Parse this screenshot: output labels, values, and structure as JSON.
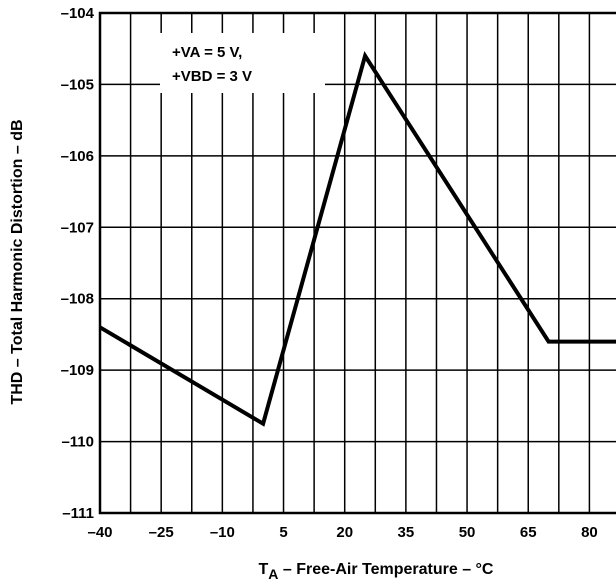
{
  "chart_data": {
    "type": "line",
    "xlabel_prefix": "T",
    "xlabel_sub": "A",
    "xlabel_rest": " – Free-Air Temperature – °C",
    "ylabel": "THD – Total Harmonic Distortion – dB",
    "x_ticks": [
      "–40",
      "–25",
      "–10",
      "5",
      "20",
      "35",
      "50",
      "65",
      "80"
    ],
    "y_ticks": [
      "–104",
      "–105",
      "–106",
      "–107",
      "–108",
      "–109",
      "–110",
      "–111"
    ],
    "xlim": [
      -40,
      87.5
    ],
    "ylim": [
      -111,
      -104
    ],
    "grid": true,
    "annotation": [
      "+VA = 5 V,",
      "+VBD = 3 V"
    ],
    "series": [
      {
        "x": [
          -40,
          0,
          25,
          70,
          87.5
        ],
        "y": [
          -108.4,
          -109.75,
          -104.6,
          -108.6,
          -108.6
        ]
      }
    ]
  }
}
